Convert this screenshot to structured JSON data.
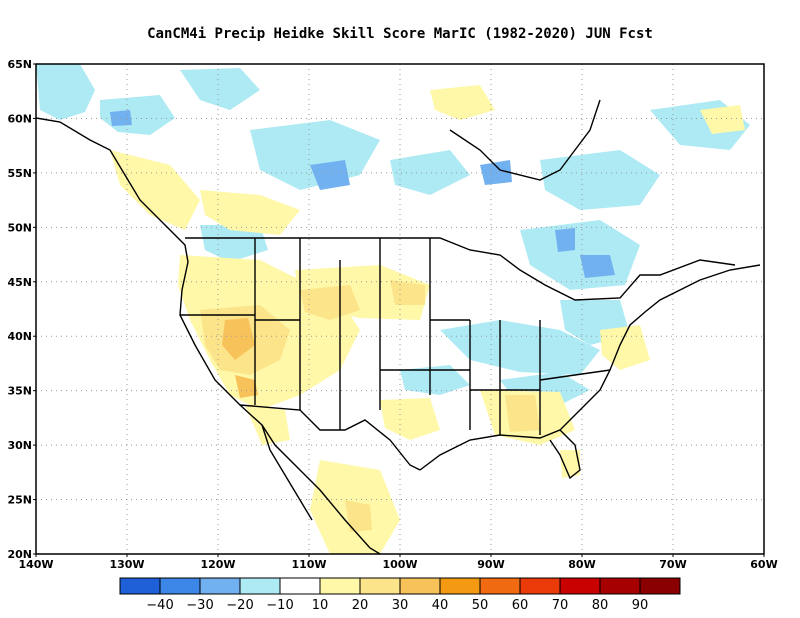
{
  "title": "CanCM4i Precip Heidke Skill Score MarIC (1982-2020) JUN Fcst",
  "map": {
    "lat_labels": [
      "65N",
      "60N",
      "55N",
      "50N",
      "45N",
      "40N",
      "35N",
      "30N",
      "25N",
      "20N"
    ],
    "lon_labels": [
      "140W",
      "130W",
      "120W",
      "110W",
      "100W",
      "90W",
      "80W",
      "70W",
      "60W"
    ],
    "extent": {
      "lon_min": -140,
      "lon_max": -60,
      "lat_min": 20,
      "lat_max": 65
    },
    "gridlines": "dotted"
  },
  "colorbar": {
    "labels": [
      "-40",
      "-30",
      "-20",
      "-10",
      "10",
      "20",
      "30",
      "40",
      "50",
      "60",
      "70",
      "80",
      "90"
    ],
    "colors": [
      "#1f5fd8",
      "#3b86e6",
      "#72b1f0",
      "#aeeaf4",
      "#ffffff",
      "#fff8a8",
      "#fbe48a",
      "#f7c25a",
      "#f39a12",
      "#ef6a10",
      "#ea3a08",
      "#c80000",
      "#a60000",
      "#8a0000"
    ]
  }
}
